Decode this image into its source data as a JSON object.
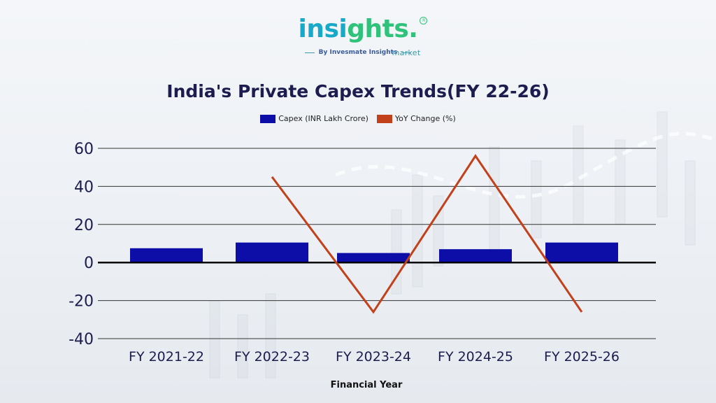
{
  "logo": {
    "brand_part1": "insi",
    "brand_part2": "ghts",
    "sub": "market",
    "registered": "R",
    "tagline": "By Invesmate Insights"
  },
  "chart_data": {
    "type": "bar",
    "title": "India's Private Capex Trends(FY 22-26)",
    "xlabel": "Financial Year",
    "ylabel": "",
    "categories": [
      "FY 2021-22",
      "FY 2022-23",
      "FY 2023-24",
      "FY 2024-25",
      "FY 2025-26"
    ],
    "series": [
      {
        "name": "Capex (INR Lakh Crore)",
        "type": "bar",
        "color": "#0d0da8",
        "values": [
          7.5,
          10.5,
          5,
          7,
          10.5
        ]
      },
      {
        "name": "YoY Change (%)",
        "type": "line",
        "color": "#c2401a",
        "values": [
          null,
          45,
          -26,
          56,
          -26
        ]
      }
    ],
    "ylim": [
      -40,
      60
    ],
    "yticks": [
      60,
      40,
      20,
      0,
      -20,
      -40
    ],
    "grid": true,
    "legend_position": "top-center"
  }
}
